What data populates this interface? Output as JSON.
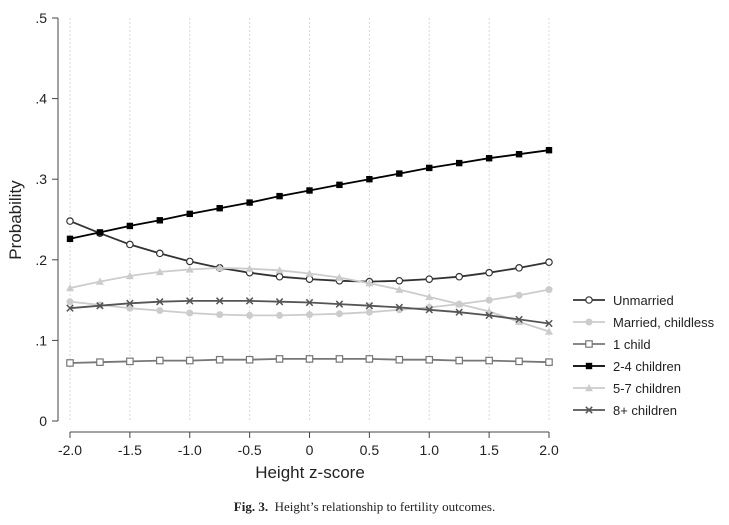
{
  "chart_data": {
    "type": "line",
    "xlabel": "Height z-score",
    "ylabel": "Probability",
    "xlim": [
      -2.0,
      2.0
    ],
    "ylim": [
      0,
      0.5
    ],
    "x_ticks": [
      -2.0,
      -1.5,
      -1.0,
      -0.5,
      0,
      0.5,
      1.0,
      1.5,
      2.0
    ],
    "x_tick_labels": [
      "-2.0",
      "-1.5",
      "-1.0",
      "-0.5",
      "0",
      "0.5",
      "1.0",
      "1.5",
      "2.0"
    ],
    "y_ticks": [
      0,
      0.1,
      0.2,
      0.3,
      0.4,
      0.5
    ],
    "y_tick_labels": [
      "0",
      ".1",
      ".2",
      ".3",
      ".4",
      ".5"
    ],
    "vertical_grid": true,
    "legend_position": "right",
    "x": [
      -2.0,
      -1.75,
      -1.5,
      -1.25,
      -1.0,
      -0.75,
      -0.5,
      -0.25,
      0,
      0.25,
      0.5,
      0.75,
      1.0,
      1.25,
      1.5,
      1.75,
      2.0
    ],
    "series": [
      {
        "name": "Unmarried",
        "color": "#333333",
        "marker": "open-circle",
        "values": [
          0.248,
          0.233,
          0.219,
          0.208,
          0.198,
          0.19,
          0.184,
          0.179,
          0.176,
          0.174,
          0.173,
          0.174,
          0.176,
          0.179,
          0.184,
          0.19,
          0.197
        ]
      },
      {
        "name": "Married, childless",
        "color": "#cccccc",
        "marker": "filled-circle",
        "values": [
          0.148,
          0.144,
          0.14,
          0.137,
          0.134,
          0.132,
          0.131,
          0.131,
          0.132,
          0.133,
          0.135,
          0.138,
          0.141,
          0.145,
          0.15,
          0.156,
          0.163
        ]
      },
      {
        "name": "1 child",
        "color": "#777777",
        "marker": "open-square",
        "values": [
          0.072,
          0.073,
          0.074,
          0.075,
          0.075,
          0.076,
          0.076,
          0.077,
          0.077,
          0.077,
          0.077,
          0.076,
          0.076,
          0.075,
          0.075,
          0.074,
          0.073
        ]
      },
      {
        "name": "2-4 children",
        "color": "#000000",
        "marker": "filled-square",
        "values": [
          0.226,
          0.234,
          0.242,
          0.249,
          0.257,
          0.264,
          0.271,
          0.279,
          0.286,
          0.293,
          0.3,
          0.307,
          0.314,
          0.32,
          0.326,
          0.331,
          0.336
        ]
      },
      {
        "name": "5-7 children",
        "color": "#cccccc",
        "marker": "filled-triangle",
        "values": [
          0.165,
          0.173,
          0.18,
          0.185,
          0.188,
          0.19,
          0.189,
          0.187,
          0.183,
          0.178,
          0.171,
          0.163,
          0.154,
          0.145,
          0.136,
          0.123,
          0.111
        ]
      },
      {
        "name": "8+ children",
        "color": "#555555",
        "marker": "x",
        "values": [
          0.14,
          0.143,
          0.146,
          0.148,
          0.149,
          0.149,
          0.149,
          0.148,
          0.147,
          0.145,
          0.143,
          0.141,
          0.138,
          0.135,
          0.131,
          0.126,
          0.121
        ]
      }
    ]
  },
  "caption": {
    "label": "Fig. 3.",
    "text": "Height’s relationship to fertility outcomes."
  }
}
